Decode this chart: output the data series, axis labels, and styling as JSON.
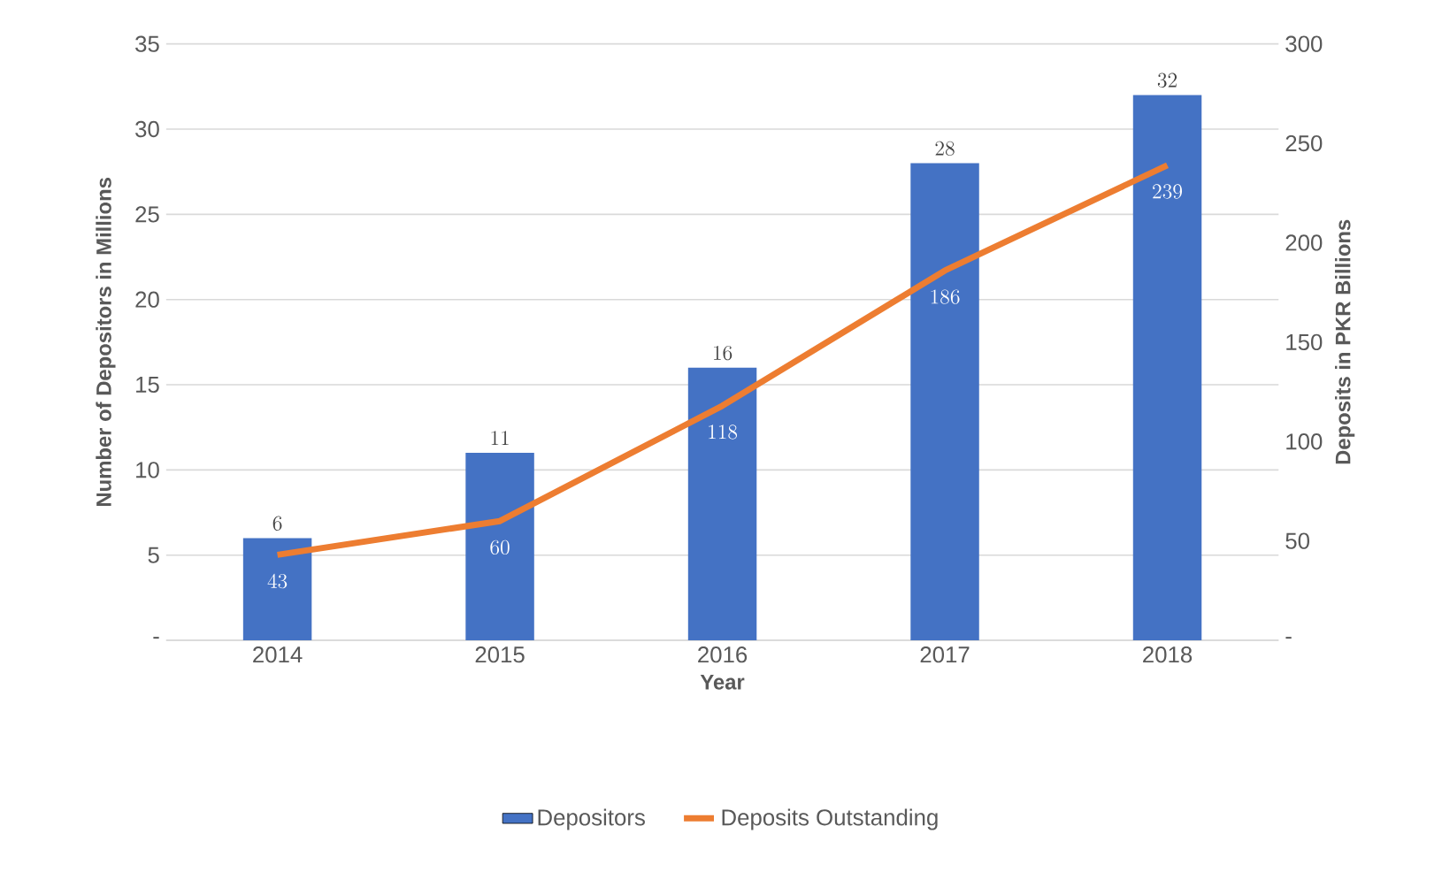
{
  "chart_data": {
    "type": "bar",
    "xlabel": "Year",
    "ylabel": "Number of Depositors in Millions",
    "y2label": "Deposits in PKR Billions",
    "categories": [
      "2014",
      "2015",
      "2016",
      "2017",
      "2018"
    ],
    "series": [
      {
        "name": "Depositors",
        "color": "#4472c4",
        "values": [
          6,
          11,
          16,
          28,
          32
        ]
      },
      {
        "name": "Deposits Outstanding",
        "type": "line",
        "axis": "y2",
        "color": "#ed7d31",
        "values": [
          43,
          60,
          118,
          186,
          239
        ]
      }
    ],
    "ylim": [
      0,
      35
    ],
    "yticks": [
      {
        "value": 0,
        "label": "-"
      },
      5,
      10,
      15,
      20,
      25,
      30,
      35
    ],
    "y2lim": [
      0,
      300
    ],
    "y2ticks": [
      {
        "value": 0,
        "label": "-"
      },
      50,
      100,
      150,
      200,
      250,
      300
    ],
    "grid": "y",
    "legend": "bottom",
    "data_labels": true,
    "marker": "none"
  }
}
